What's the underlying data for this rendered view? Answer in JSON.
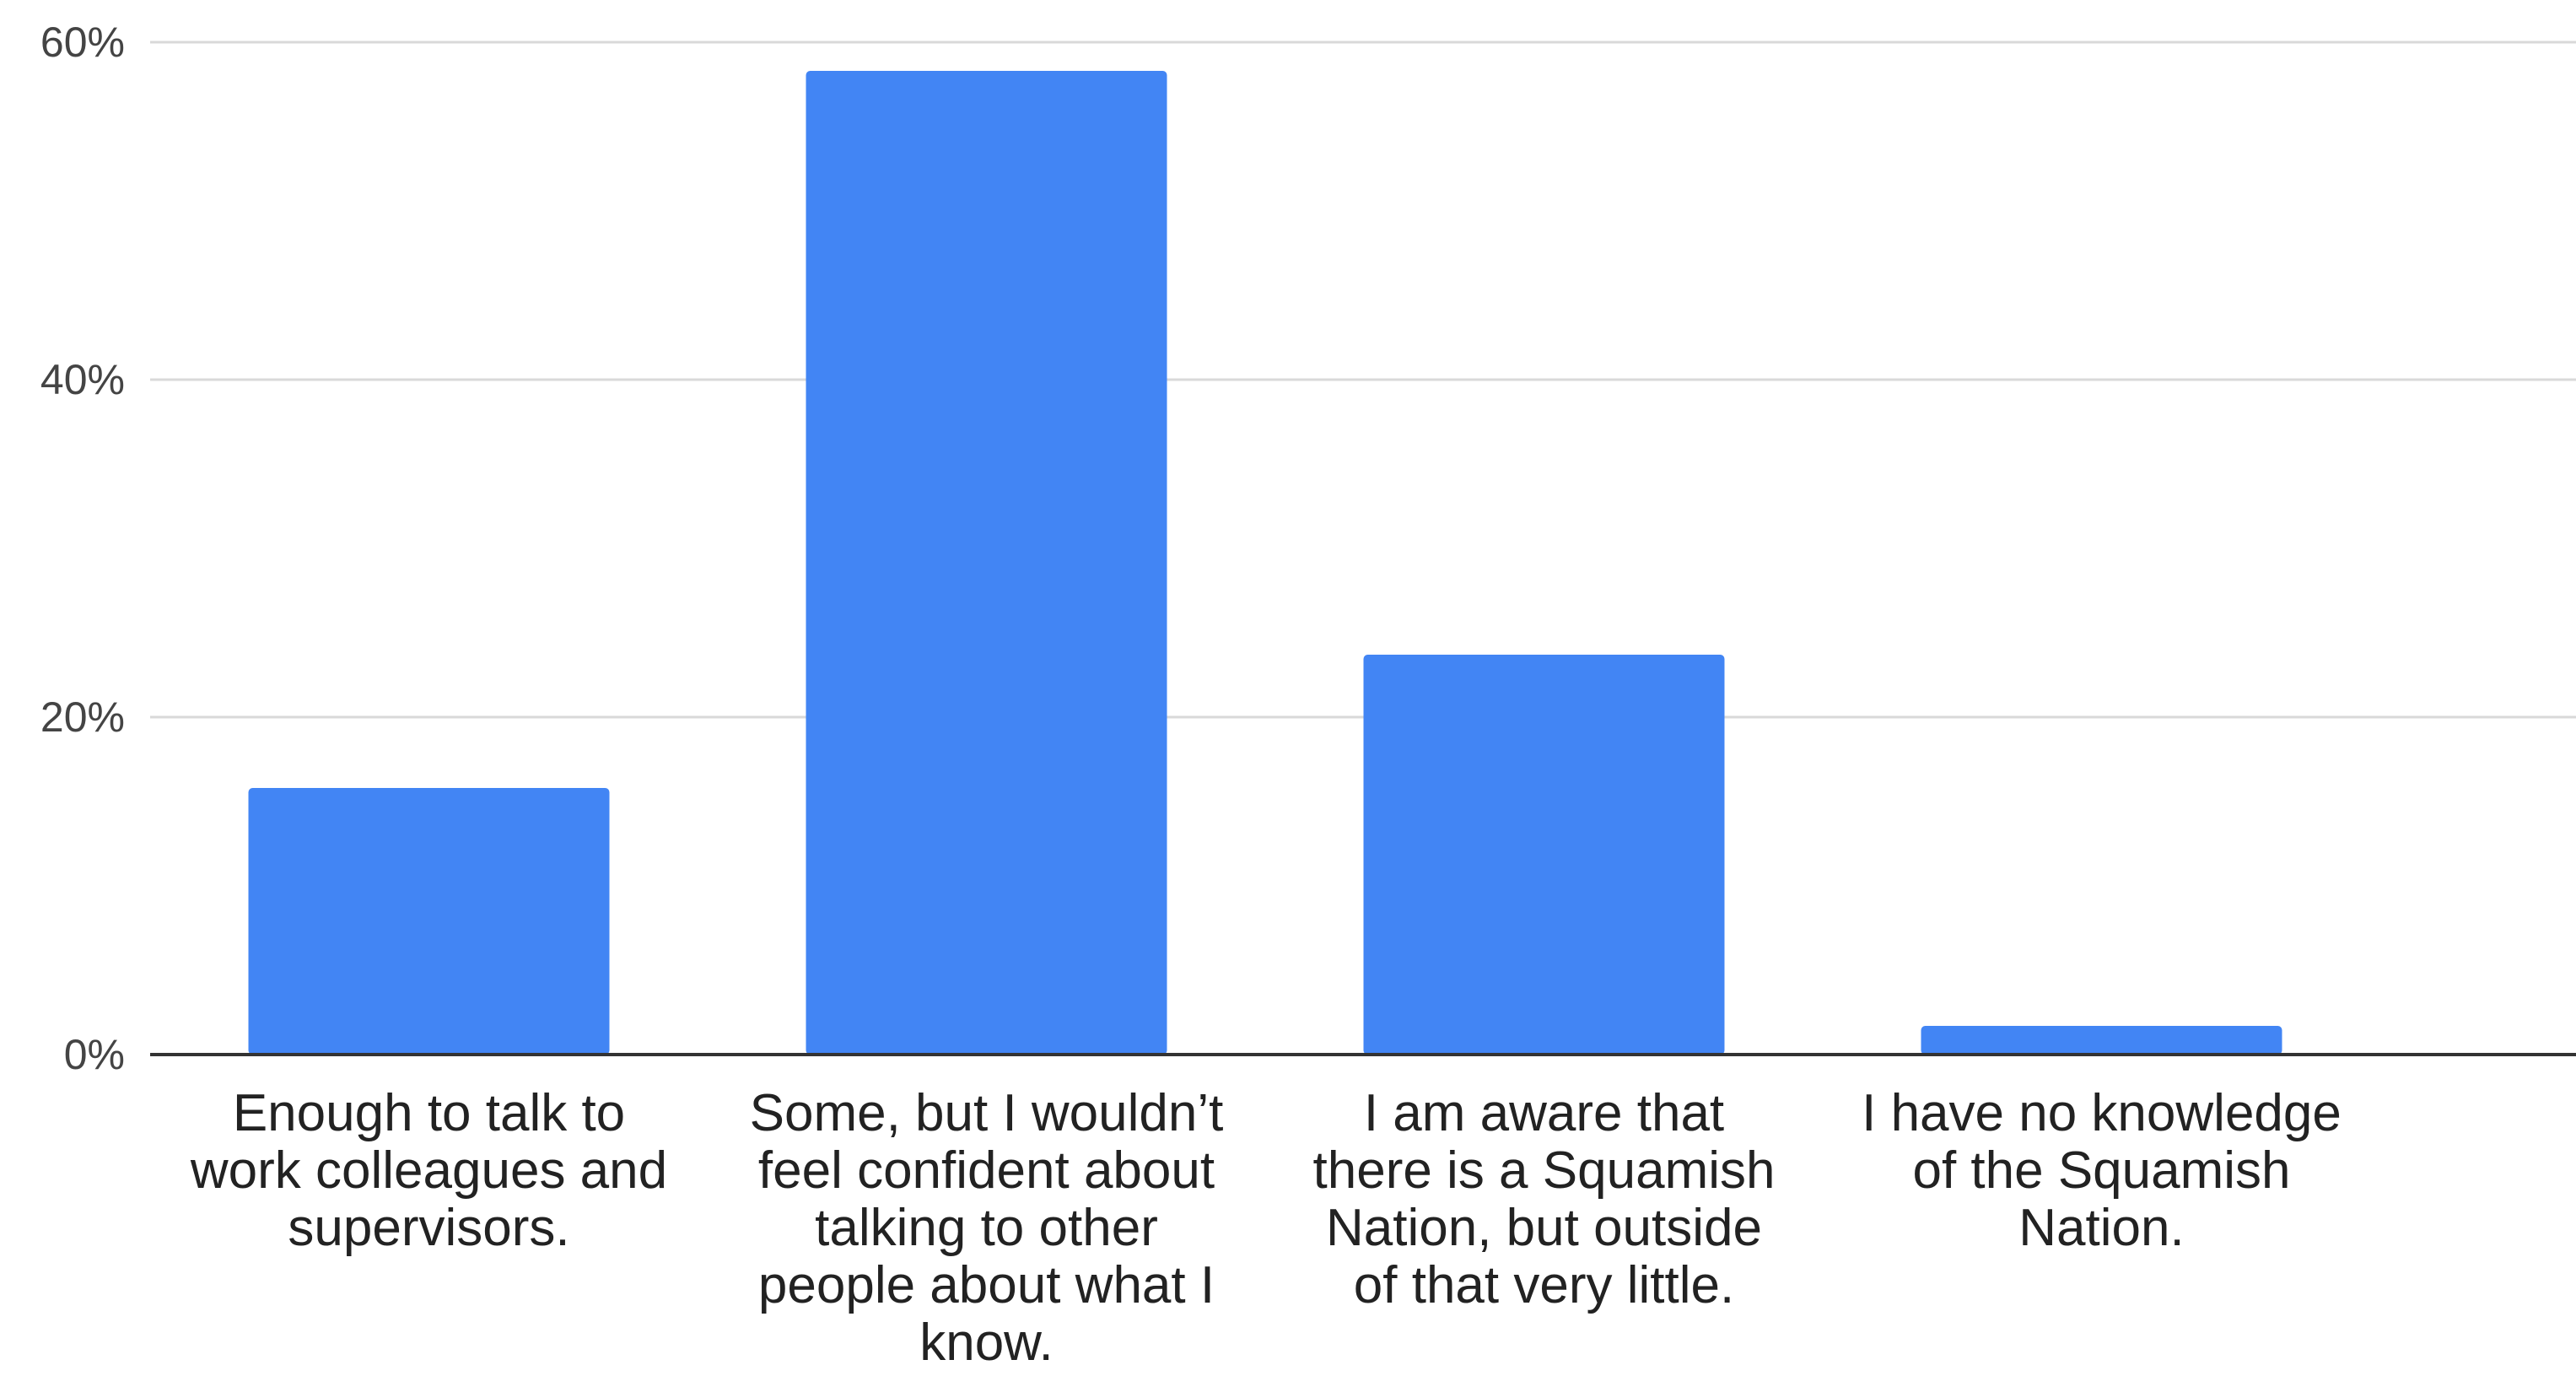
{
  "chart_data": {
    "type": "bar",
    "categories": [
      [
        "Enough to talk to",
        "work colleagues and",
        "supervisors."
      ],
      [
        "Some, but I wouldn’t",
        "feel confident about",
        "talking to other",
        "people about what I",
        "know."
      ],
      [
        "I am aware that",
        "there is a Squamish",
        "Nation, but outside",
        "of that very little."
      ],
      [
        "I have no knowledge",
        "of the Squamish",
        "Nation."
      ]
    ],
    "values": [
      15.8,
      58.3,
      23.7,
      1.7
    ],
    "y_ticks": [
      "0%",
      "20%",
      "40%",
      "60%"
    ],
    "ylim": [
      0,
      60
    ],
    "grid": true,
    "bar_color": "#4285F4",
    "grid_color": "#d9d9d9",
    "baseline_color": "#333333"
  }
}
